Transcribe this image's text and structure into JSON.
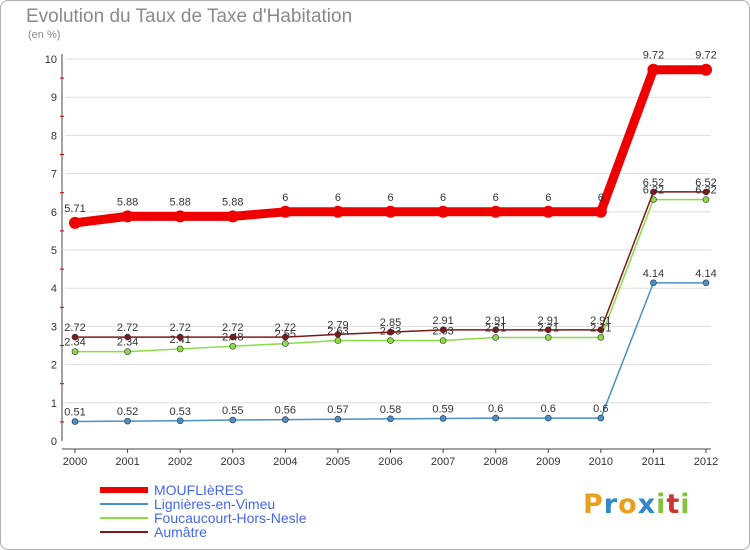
{
  "chart_data": {
    "type": "line",
    "title": "Evolution du Taux de Taxe d'Habitation",
    "unit_label": "(en %)",
    "categories": [
      "2000",
      "2001",
      "2002",
      "2003",
      "2004",
      "2005",
      "2006",
      "2007",
      "2008",
      "2009",
      "2010",
      "2011",
      "2012"
    ],
    "ylim": [
      0,
      10
    ],
    "yticks": [
      "0",
      "1",
      "2",
      "3",
      "4",
      "5",
      "6",
      "7",
      "8",
      "9",
      "10"
    ],
    "series": [
      {
        "name": "MOUFLIèRES",
        "color": "#ee0000",
        "values": [
          5.71,
          5.88,
          5.88,
          5.88,
          6,
          6,
          6,
          6,
          6,
          6,
          6,
          9.72,
          9.72
        ],
        "labels": [
          "5.71",
          "5.88",
          "5.88",
          "5.88",
          "6",
          "6",
          "6",
          "6",
          "6",
          "6",
          "6",
          "9.72",
          "9.72"
        ]
      },
      {
        "name": "Lignières-en-Vimeu",
        "color": "#4a90c8",
        "values": [
          0.51,
          0.52,
          0.53,
          0.55,
          0.56,
          0.57,
          0.58,
          0.59,
          0.6,
          0.6,
          0.6,
          4.14,
          4.14
        ],
        "labels": [
          "0.51",
          "0.52",
          "0.53",
          "0.55",
          "0.56",
          "0.57",
          "0.58",
          "0.59",
          "0.6",
          "0.6",
          "0.6",
          "4.14",
          "4.14"
        ]
      },
      {
        "name": "Foucaucourt-Hors-Nesle",
        "color": "#88dd44",
        "values": [
          2.34,
          2.34,
          2.41,
          2.48,
          2.55,
          2.63,
          2.63,
          2.63,
          2.71,
          2.71,
          2.71,
          6.32,
          6.32
        ],
        "labels": [
          "2.34",
          "2.34",
          "2.41",
          "2.48",
          "2.55",
          "2.63",
          "2.63",
          "2.63",
          "2.71",
          "2.71",
          "2.71",
          "6.32",
          "6.32"
        ]
      },
      {
        "name": "Aumâtre",
        "color": "#7a1a1a",
        "values": [
          2.72,
          2.72,
          2.72,
          2.72,
          2.72,
          2.79,
          2.85,
          2.91,
          2.91,
          2.91,
          2.91,
          6.52,
          6.52
        ],
        "labels": [
          "2.72",
          "2.72",
          "2.72",
          "2.72",
          "2.72",
          "2.79",
          "2.85",
          "2.91",
          "2.91",
          "2.91",
          "2.91",
          "6.52",
          "6.52"
        ]
      }
    ]
  },
  "brand": {
    "letters": [
      "P",
      "r",
      "o",
      "x",
      "i",
      "t",
      "i"
    ],
    "colors": [
      "#e8a020",
      "#3388cc",
      "#e8a020",
      "#3388cc",
      "#88c040",
      "#cc3333",
      "#88c040"
    ]
  }
}
